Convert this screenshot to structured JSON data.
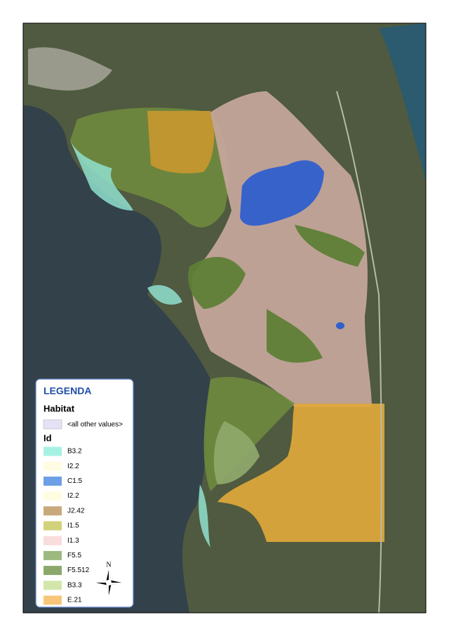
{
  "legend": {
    "title": "LEGENDA",
    "group_title": "Habitat",
    "other": {
      "label": "<all other values>",
      "color": "#e4e2f4"
    },
    "field_title": "Id",
    "items": [
      {
        "label": "B3.2",
        "color": "#a6f2e2"
      },
      {
        "label": "I2.2",
        "color": "#fffce2"
      },
      {
        "label": "C1.5",
        "color": "#6d9fe6"
      },
      {
        "label": "I2.2",
        "color": "#fffce2"
      },
      {
        "label": "J2.42",
        "color": "#c9a97c"
      },
      {
        "label": "I1.5",
        "color": "#d3d27c"
      },
      {
        "label": "I1.3",
        "color": "#f9dcdc"
      },
      {
        "label": "F5.5",
        "color": "#9db97f"
      },
      {
        "label": "F5.512",
        "color": "#8aa86c"
      },
      {
        "label": "B3.3",
        "color": "#d2e6ab"
      },
      {
        "label": "E.21",
        "color": "#f8c67a"
      }
    ]
  },
  "compass_label": "N"
}
